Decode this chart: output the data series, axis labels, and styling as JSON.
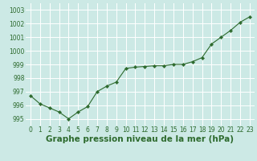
{
  "x": [
    0,
    1,
    2,
    3,
    4,
    5,
    6,
    7,
    8,
    9,
    10,
    11,
    12,
    13,
    14,
    15,
    16,
    17,
    18,
    19,
    20,
    21,
    22,
    23
  ],
  "y": [
    996.7,
    996.1,
    995.8,
    995.5,
    995.0,
    995.5,
    995.9,
    997.0,
    997.4,
    997.7,
    998.7,
    998.8,
    998.85,
    998.9,
    998.9,
    999.0,
    999.0,
    999.2,
    999.5,
    1000.5,
    1001.0,
    1001.5,
    1002.1,
    1002.5
  ],
  "line_color": "#2d6a2d",
  "marker": "D",
  "marker_size": 2.2,
  "bg_color": "#cce9e5",
  "grid_color": "#ffffff",
  "xlabel": "Graphe pression niveau de la mer (hPa)",
  "xlabel_color": "#2d6a2d",
  "tick_color": "#2d6a2d",
  "ylim": [
    994.5,
    1003.5
  ],
  "xlim": [
    -0.5,
    23.5
  ],
  "yticks": [
    995,
    996,
    997,
    998,
    999,
    1000,
    1001,
    1002,
    1003
  ],
  "xticks": [
    0,
    1,
    2,
    3,
    4,
    5,
    6,
    7,
    8,
    9,
    10,
    11,
    12,
    13,
    14,
    15,
    16,
    17,
    18,
    19,
    20,
    21,
    22,
    23
  ],
  "tick_fontsize": 5.5,
  "xlabel_fontsize": 7.5,
  "linewidth": 0.8
}
